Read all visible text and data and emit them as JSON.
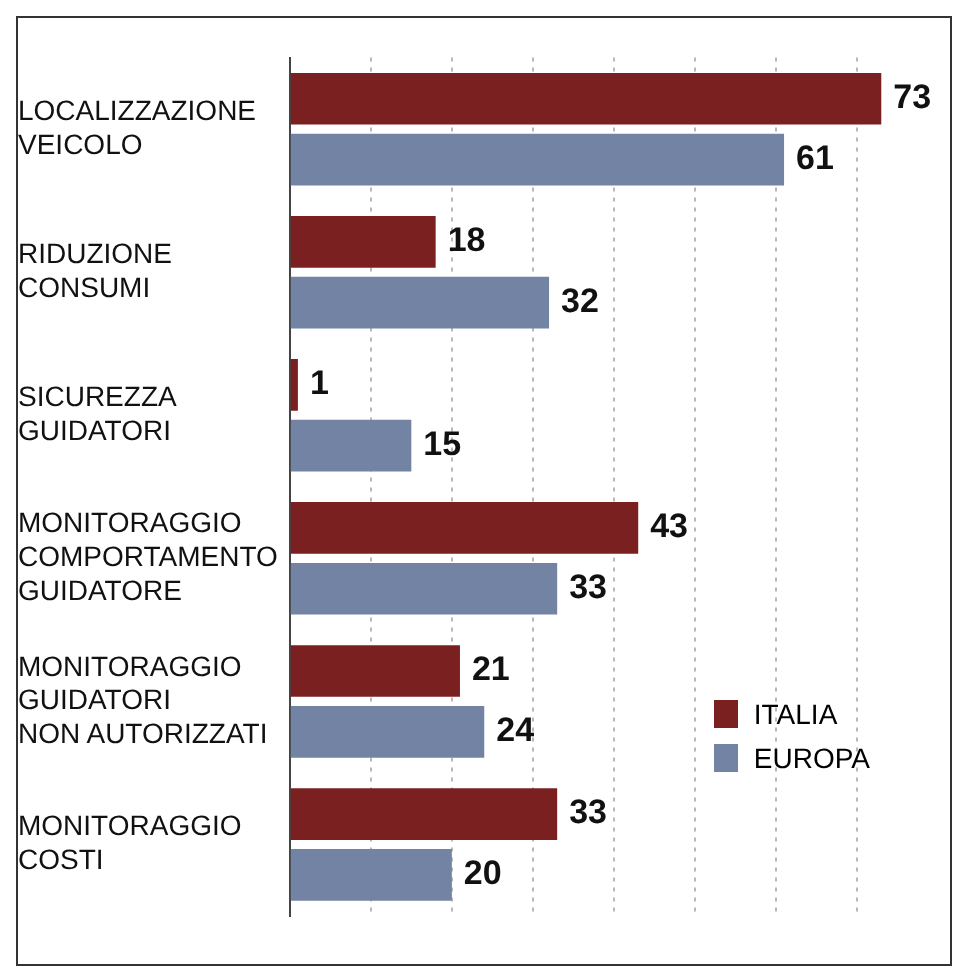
{
  "chart_data": {
    "type": "bar",
    "orientation": "horizontal",
    "categories": [
      "LOCALIZZAZIONE\nVEICOLO",
      "RIDUZIONE\nCONSUMI",
      "SICUREZZA\nGUIDATORI",
      "MONITORAGGIO\nCOMPORTAMENTO\nGUIDATORE",
      "MONITORAGGIO\nGUIDATORI\nNON AUTORIZZATI",
      "MONITORAGGIO\nCOSTI"
    ],
    "series": [
      {
        "name": "ITALIA",
        "color": "#7a2020",
        "values": [
          73,
          18,
          1,
          43,
          21,
          33
        ]
      },
      {
        "name": "EUROPA",
        "color": "#7383a3",
        "values": [
          61,
          32,
          15,
          33,
          24,
          20
        ]
      }
    ],
    "xticks": [
      {
        "value": 0,
        "label": null
      },
      {
        "value": 10,
        "label": null
      },
      {
        "value": 20,
        "label": null
      },
      {
        "value": 30,
        "label": null
      },
      {
        "value": 40,
        "label": null
      },
      {
        "value": 50,
        "label": null
      },
      {
        "value": 60,
        "label": null
      },
      {
        "value": 70,
        "label": null
      }
    ],
    "grid": "x",
    "tick_labels": "y",
    "data_labels": true,
    "legend": "right"
  }
}
